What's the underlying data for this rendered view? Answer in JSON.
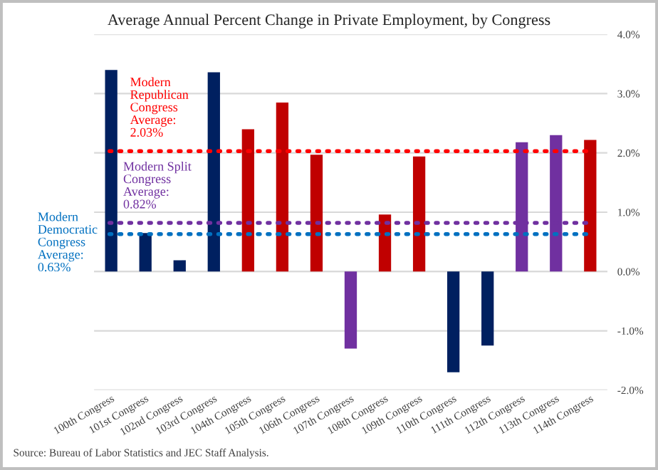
{
  "chart_data": {
    "type": "bar",
    "title": "Average Annual Percent Change in Private Employment, by Congress",
    "categories": [
      "100th Congress",
      "101st Congress",
      "102nd Congress",
      "103rd Congress",
      "104th Congress",
      "105th Congress",
      "106th Congress",
      "107th Congress",
      "108th Congress",
      "109th Congress",
      "110th Congress",
      "111th Congress",
      "112th Congress",
      "113th Congress",
      "114th Congress"
    ],
    "values": [
      3.4,
      0.65,
      0.19,
      3.36,
      2.4,
      2.85,
      1.97,
      -1.3,
      0.96,
      1.94,
      -1.7,
      -1.25,
      2.18,
      2.3,
      2.22
    ],
    "colors": [
      "#002060",
      "#002060",
      "#002060",
      "#002060",
      "#c00000",
      "#c00000",
      "#c00000",
      "#7030a0",
      "#c00000",
      "#c00000",
      "#002060",
      "#002060",
      "#7030a0",
      "#7030a0",
      "#c00000"
    ],
    "ylim": [
      -2.0,
      4.0
    ],
    "yticks": [
      {
        "value": -2.0,
        "label": "-2.0%"
      },
      {
        "value": -1.0,
        "label": "-1.0%"
      },
      {
        "value": 0.0,
        "label": "0.0%"
      },
      {
        "value": 1.0,
        "label": "1.0%"
      },
      {
        "value": 2.0,
        "label": "2.0%"
      },
      {
        "value": 3.0,
        "label": "3.0%"
      },
      {
        "value": 4.0,
        "label": "4.0%"
      }
    ],
    "grid": "y",
    "ref_lines": [
      {
        "axis": "y",
        "value": 2.03,
        "label": "Modern\nRepublican\nCongress\nAverage:\n2.03%",
        "color": "#ff0000",
        "line_style": "dotted"
      },
      {
        "axis": "y",
        "value": 0.82,
        "label": "Modern Split\nCongress\nAverage:\n0.82%",
        "color": "#7030a0",
        "line_style": "dotted"
      },
      {
        "axis": "y",
        "value": 0.63,
        "label": "Modern\nDemocratic\nCongress\nAverage:\n0.63%",
        "color": "#0070c0",
        "line_style": "dotted"
      }
    ],
    "annotations": [
      "Source: Bureau of Labor Statistics and JEC Staff Analysis."
    ]
  }
}
